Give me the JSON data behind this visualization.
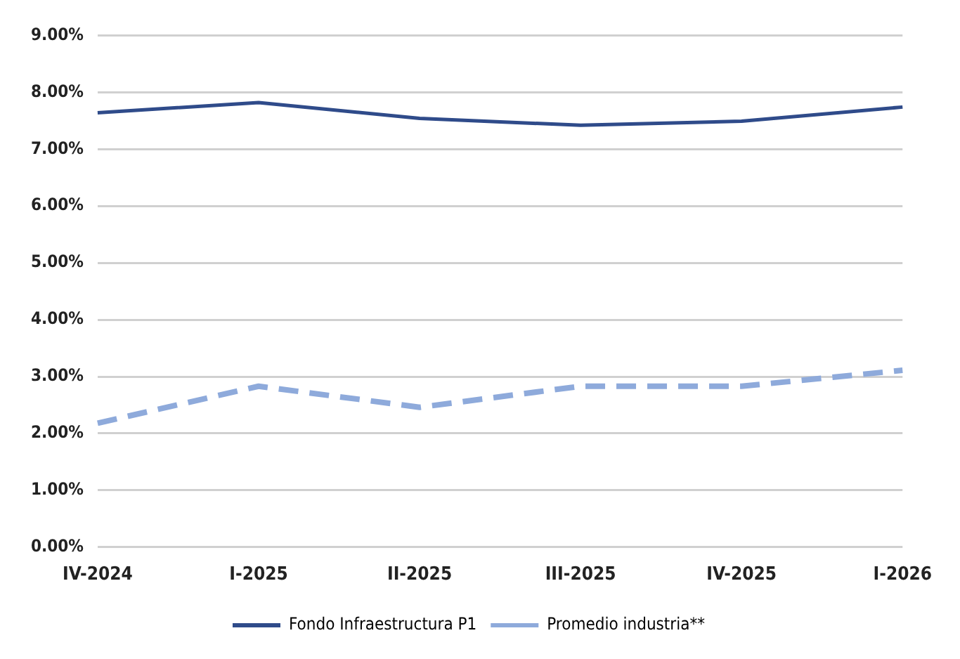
{
  "chart_data": {
    "type": "line",
    "categories": [
      "IV-2024",
      "I-2025",
      "II-2025",
      "III-2025",
      "IV-2025",
      "I-2026"
    ],
    "series": [
      {
        "name": "Fondo Infraestructura P1",
        "color": "#2f4b8a",
        "line_style": "solid",
        "values": [
          7.64,
          7.82,
          7.54,
          7.42,
          7.49,
          7.74
        ]
      },
      {
        "name": "Promedio industria**",
        "color": "#8eaadb",
        "line_style": "dashed",
        "values": [
          2.18,
          2.83,
          2.46,
          2.83,
          2.83,
          3.11
        ]
      }
    ],
    "ylim": [
      0,
      9
    ],
    "yticks": [
      {
        "value": 0,
        "label": "0.00%"
      },
      {
        "value": 1,
        "label": "1.00%"
      },
      {
        "value": 2,
        "label": "2.00%"
      },
      {
        "value": 3,
        "label": "3.00%"
      },
      {
        "value": 4,
        "label": "4.00%"
      },
      {
        "value": 5,
        "label": "5.00%"
      },
      {
        "value": 6,
        "label": "6.00%"
      },
      {
        "value": 7,
        "label": "7.00%"
      },
      {
        "value": 8,
        "label": "8.00%"
      },
      {
        "value": 9,
        "label": "9.00%"
      }
    ],
    "grid": "y",
    "legend": "bottom",
    "marker": "none"
  }
}
